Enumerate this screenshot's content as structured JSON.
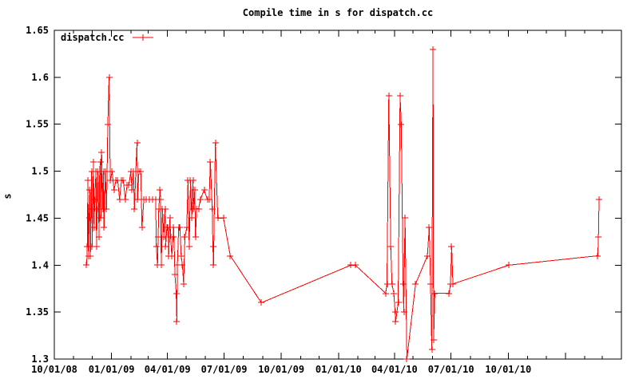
{
  "title": "Compile time in s for dispatch.cc",
  "ylabel": "s",
  "legend": {
    "label": "dispatch.cc",
    "position": "top-left"
  },
  "colors": {
    "series": "#ff0000",
    "axis": "#000000",
    "text": "#000000",
    "background": "#ffffff"
  },
  "chart_data": {
    "type": "line",
    "title": "Compile time in s for dispatch.cc",
    "xlabel": "",
    "ylabel": "s",
    "grid": false,
    "legend_position": "top-left",
    "marker": "plus",
    "x_range": [
      "2008-10-01",
      "2011-04-01"
    ],
    "y_range": [
      1.3,
      1.65
    ],
    "y_ticks": [
      {
        "value": 1.3,
        "label": "1.3"
      },
      {
        "value": 1.35,
        "label": "1.35"
      },
      {
        "value": 1.4,
        "label": "1.4"
      },
      {
        "value": 1.45,
        "label": "1.45"
      },
      {
        "value": 1.5,
        "label": "1.5"
      },
      {
        "value": 1.55,
        "label": "1.55"
      },
      {
        "value": 1.6,
        "label": "1.6"
      },
      {
        "value": 1.65,
        "label": "1.65"
      }
    ],
    "x_ticks": [
      {
        "date": "2008-10-01",
        "label": "10/01/08"
      },
      {
        "date": "2009-01-01",
        "label": "01/01/09"
      },
      {
        "date": "2009-04-01",
        "label": "04/01/09"
      },
      {
        "date": "2009-07-01",
        "label": "07/01/09"
      },
      {
        "date": "2009-10-01",
        "label": "10/01/09"
      },
      {
        "date": "2010-01-01",
        "label": "01/01/10"
      },
      {
        "date": "2010-04-01",
        "label": "04/01/10"
      },
      {
        "date": "2010-07-01",
        "label": "07/01/10"
      },
      {
        "date": "2010-10-01",
        "label": "10/01/10"
      },
      {
        "date": "2011-01-01",
        "label": ""
      },
      {
        "date": "2011-04-01",
        "label": ""
      }
    ],
    "x_minor_tick_interval": "month",
    "series": [
      {
        "name": "dispatch.cc",
        "color": "#ff0000",
        "points": [
          [
            "2008-11-22",
            1.4
          ],
          [
            "2008-11-23",
            1.42
          ],
          [
            "2008-11-24",
            1.49
          ],
          [
            "2008-11-25",
            1.41
          ],
          [
            "2008-11-26",
            1.45
          ],
          [
            "2008-11-27",
            1.48
          ],
          [
            "2008-11-28",
            1.41
          ],
          [
            "2008-11-29",
            1.46
          ],
          [
            "2008-11-30",
            1.5
          ],
          [
            "2008-12-01",
            1.42
          ],
          [
            "2008-12-03",
            1.51
          ],
          [
            "2008-12-04",
            1.44
          ],
          [
            "2008-12-05",
            1.47
          ],
          [
            "2008-12-07",
            1.5
          ],
          [
            "2008-12-08",
            1.42
          ],
          [
            "2008-12-09",
            1.46
          ],
          [
            "2008-12-10",
            1.5
          ],
          [
            "2008-12-12",
            1.43
          ],
          [
            "2008-12-13",
            1.5
          ],
          [
            "2008-12-14",
            1.51
          ],
          [
            "2008-12-15",
            1.45
          ],
          [
            "2008-12-16",
            1.52
          ],
          [
            "2008-12-18",
            1.46
          ],
          [
            "2008-12-19",
            1.5
          ],
          [
            "2008-12-20",
            1.44
          ],
          [
            "2008-12-22",
            1.5
          ],
          [
            "2008-12-24",
            1.46
          ],
          [
            "2008-12-26",
            1.55
          ],
          [
            "2008-12-28",
            1.6
          ],
          [
            "2008-12-30",
            1.49
          ],
          [
            "2009-01-02",
            1.5
          ],
          [
            "2009-01-05",
            1.48
          ],
          [
            "2009-01-08",
            1.49
          ],
          [
            "2009-01-11",
            1.49
          ],
          [
            "2009-01-14",
            1.47
          ],
          [
            "2009-01-17",
            1.49
          ],
          [
            "2009-01-20",
            1.49
          ],
          [
            "2009-01-23",
            1.47
          ],
          [
            "2009-01-26",
            1.485
          ],
          [
            "2009-01-29",
            1.485
          ],
          [
            "2009-02-01",
            1.5
          ],
          [
            "2009-02-03",
            1.48
          ],
          [
            "2009-02-05",
            1.5
          ],
          [
            "2009-02-07",
            1.46
          ],
          [
            "2009-02-09",
            1.5
          ],
          [
            "2009-02-11",
            1.53
          ],
          [
            "2009-02-12",
            1.47
          ],
          [
            "2009-02-14",
            1.5
          ],
          [
            "2009-02-17",
            1.5
          ],
          [
            "2009-02-19",
            1.44
          ],
          [
            "2009-02-22",
            1.47
          ],
          [
            "2009-02-26",
            1.47
          ],
          [
            "2009-03-03",
            1.47
          ],
          [
            "2009-03-08",
            1.47
          ],
          [
            "2009-03-13",
            1.47
          ],
          [
            "2009-03-14",
            1.42
          ],
          [
            "2009-03-16",
            1.4
          ],
          [
            "2009-03-17",
            1.43
          ],
          [
            "2009-03-18",
            1.46
          ],
          [
            "2009-03-20",
            1.48
          ],
          [
            "2009-03-21",
            1.47
          ],
          [
            "2009-03-22",
            1.4
          ],
          [
            "2009-03-24",
            1.46
          ],
          [
            "2009-03-26",
            1.43
          ],
          [
            "2009-03-28",
            1.46
          ],
          [
            "2009-03-29",
            1.42
          ],
          [
            "2009-03-31",
            1.44
          ],
          [
            "2009-04-02",
            1.44
          ],
          [
            "2009-04-03",
            1.41
          ],
          [
            "2009-04-05",
            1.45
          ],
          [
            "2009-04-06",
            1.43
          ],
          [
            "2009-04-08",
            1.41
          ],
          [
            "2009-04-10",
            1.43
          ],
          [
            "2009-04-11",
            1.44
          ],
          [
            "2009-04-13",
            1.39
          ],
          [
            "2009-04-15",
            1.37
          ],
          [
            "2009-04-16",
            1.34
          ],
          [
            "2009-04-17",
            1.4
          ],
          [
            "2009-04-19",
            1.44
          ],
          [
            "2009-04-21",
            1.44
          ],
          [
            "2009-04-23",
            1.41
          ],
          [
            "2009-04-25",
            1.4
          ],
          [
            "2009-04-27",
            1.38
          ],
          [
            "2009-04-29",
            1.43
          ],
          [
            "2009-05-02",
            1.44
          ],
          [
            "2009-05-04",
            1.49
          ],
          [
            "2009-05-06",
            1.42
          ],
          [
            "2009-05-08",
            1.49
          ],
          [
            "2009-05-10",
            1.45
          ],
          [
            "2009-05-12",
            1.49
          ],
          [
            "2009-05-13",
            1.46
          ],
          [
            "2009-05-15",
            1.48
          ],
          [
            "2009-05-16",
            1.43
          ],
          [
            "2009-05-18",
            1.46
          ],
          [
            "2009-05-21",
            1.46
          ],
          [
            "2009-05-24",
            1.47
          ],
          [
            "2009-05-30",
            1.48
          ],
          [
            "2009-06-04",
            1.47
          ],
          [
            "2009-06-07",
            1.47
          ],
          [
            "2009-06-09",
            1.51
          ],
          [
            "2009-06-12",
            1.46
          ],
          [
            "2009-06-13",
            1.42
          ],
          [
            "2009-06-14",
            1.4
          ],
          [
            "2009-06-17",
            1.53
          ],
          [
            "2009-06-21",
            1.45
          ],
          [
            "2009-06-30",
            1.45
          ],
          [
            "2009-07-11",
            1.41
          ],
          [
            "2009-08-30",
            1.36
          ],
          [
            "2010-01-21",
            1.4
          ],
          [
            "2010-01-28",
            1.4
          ],
          [
            "2010-03-18",
            1.37
          ],
          [
            "2010-03-20",
            1.38
          ],
          [
            "2010-03-23",
            1.58
          ],
          [
            "2010-03-26",
            1.42
          ],
          [
            "2010-03-28",
            1.38
          ],
          [
            "2010-03-31",
            1.37
          ],
          [
            "2010-04-02",
            1.35
          ],
          [
            "2010-04-03",
            1.34
          ],
          [
            "2010-04-07",
            1.36
          ],
          [
            "2010-04-10",
            1.58
          ],
          [
            "2010-04-12",
            1.55
          ],
          [
            "2010-04-15",
            1.38
          ],
          [
            "2010-04-16",
            1.35
          ],
          [
            "2010-04-18",
            1.45
          ],
          [
            "2010-04-21",
            1.3
          ],
          [
            "2010-05-05",
            1.38
          ],
          [
            "2010-05-24",
            1.41
          ],
          [
            "2010-05-27",
            1.44
          ],
          [
            "2010-05-29",
            1.38
          ],
          [
            "2010-05-31",
            1.31
          ],
          [
            "2010-06-02",
            1.63
          ],
          [
            "2010-06-03",
            1.32
          ],
          [
            "2010-06-05",
            1.37
          ],
          [
            "2010-06-28",
            1.37
          ],
          [
            "2010-06-30",
            1.38
          ],
          [
            "2010-07-02",
            1.42
          ],
          [
            "2010-07-04",
            1.38
          ],
          [
            "2010-10-02",
            1.4
          ],
          [
            "2011-02-22",
            1.41
          ],
          [
            "2011-02-23",
            1.43
          ],
          [
            "2011-02-24",
            1.47
          ]
        ]
      }
    ]
  }
}
